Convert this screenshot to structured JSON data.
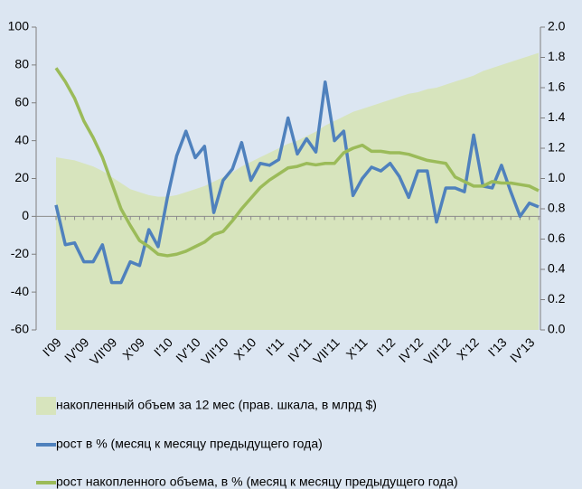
{
  "chart_data": {
    "type": "line",
    "categories": [
      "I'09",
      null,
      null,
      "IV'09",
      null,
      null,
      "VII'09",
      null,
      null,
      "X'09",
      null,
      null,
      "I'10",
      null,
      null,
      "IV'10",
      null,
      null,
      "VII'10",
      null,
      null,
      "X'10",
      null,
      null,
      "I'11",
      null,
      null,
      "IV'11",
      null,
      null,
      "VII'11",
      null,
      null,
      "X'11",
      null,
      null,
      "I'12",
      null,
      null,
      "IV'12",
      null,
      null,
      "VII'12",
      null,
      null,
      "X'12",
      null,
      null,
      "I'13",
      null,
      null,
      "IV'13",
      null
    ],
    "series": [
      {
        "name": "накопленный объем за 12 мес (прав. шкала, в млрд $)",
        "type": "area",
        "color": "#d7e4bd",
        "axis": "y2",
        "values": [
          1.14,
          1.13,
          1.12,
          1.1,
          1.08,
          1.05,
          1.01,
          0.97,
          0.93,
          0.91,
          0.89,
          0.88,
          0.88,
          0.89,
          0.91,
          0.93,
          0.95,
          0.98,
          1.01,
          1.04,
          1.08,
          1.11,
          1.14,
          1.17,
          1.2,
          1.23,
          1.25,
          1.28,
          1.31,
          1.35,
          1.38,
          1.41,
          1.44,
          1.46,
          1.48,
          1.5,
          1.52,
          1.54,
          1.56,
          1.57,
          1.59,
          1.6,
          1.62,
          1.64,
          1.66,
          1.68,
          1.71,
          1.73,
          1.75,
          1.77,
          1.79,
          1.81,
          1.83
        ]
      },
      {
        "name": "рост в % (месяц к месяцу предыдущего года)",
        "type": "line",
        "color": "#4f81bd",
        "values": [
          6,
          -15,
          -14,
          -24,
          -24,
          -15,
          -35,
          -35,
          -24,
          -26,
          -7,
          -16,
          10,
          32,
          45,
          31,
          37,
          2,
          19,
          25,
          39,
          19,
          28,
          27,
          30,
          52,
          33,
          41,
          34,
          71,
          40,
          45,
          11,
          20,
          26,
          24,
          28,
          21,
          10,
          24,
          24,
          -3,
          15,
          15,
          13,
          43,
          16,
          15,
          27,
          13,
          0,
          7,
          5
        ]
      },
      {
        "name": "рост накопленного объема, в % (месяц к месяцу предыдущего года)",
        "type": "line",
        "color": "#9bbb59",
        "axis": "y2",
        "values": [
          1.73,
          1.64,
          1.53,
          1.38,
          1.27,
          1.14,
          0.97,
          0.8,
          0.69,
          0.59,
          0.55,
          0.5,
          0.49,
          0.5,
          0.52,
          0.55,
          0.58,
          0.63,
          0.65,
          0.72,
          0.8,
          0.87,
          0.94,
          0.99,
          1.03,
          1.07,
          1.08,
          1.1,
          1.09,
          1.1,
          1.1,
          1.17,
          1.2,
          1.22,
          1.18,
          1.18,
          1.17,
          1.17,
          1.16,
          1.14,
          1.12,
          1.11,
          1.1,
          1.01,
          0.98,
          0.95,
          0.95,
          0.98,
          0.97,
          0.97,
          0.96,
          0.95,
          0.92
        ]
      }
    ],
    "ylim": [
      -60,
      100
    ],
    "yticks": [
      -60,
      -40,
      -20,
      0,
      20,
      40,
      60,
      80,
      100
    ],
    "y2lim": [
      0,
      2
    ],
    "y2ticks": [
      {
        "value": 0,
        "label": "0.0"
      },
      {
        "value": 0.2,
        "label": "0.2"
      },
      {
        "value": 0.4,
        "label": "0.4"
      },
      {
        "value": 0.6,
        "label": "0.6"
      },
      {
        "value": 0.8,
        "label": "0.8"
      },
      {
        "value": 1,
        "label": "1.0"
      },
      {
        "value": 1.2,
        "label": "1.2"
      },
      {
        "value": 1.4,
        "label": "1.4"
      },
      {
        "value": 1.6,
        "label": "1.6"
      },
      {
        "value": 1.8,
        "label": "1.8"
      },
      {
        "value": 2,
        "label": "2.0"
      }
    ],
    "legend": "bottom"
  }
}
